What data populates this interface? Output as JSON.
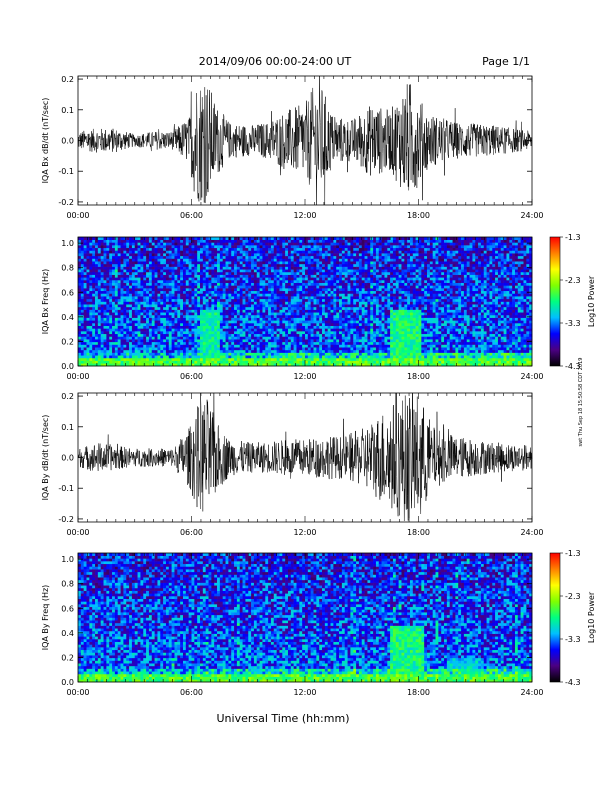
{
  "header": {
    "title": "2014/09/06  00:00-24:00 UT",
    "page": "Page 1/1"
  },
  "footer": {
    "xlabel": "Universal Time (hh:mm)",
    "side_note": "swt Thu Sep 18 15:50:58 CDT 2019"
  },
  "colorbar": {
    "label": "Log10 Power",
    "ticks": [
      "-1.3",
      "-2.3",
      "-3.3",
      "-4.3"
    ],
    "stops": [
      "#000000",
      "#4b0082",
      "#0000ff",
      "#00bfff",
      "#00ff80",
      "#80ff00",
      "#ffff00",
      "#ff8000",
      "#ff0000"
    ]
  },
  "chart_data": [
    {
      "type": "line",
      "ylabel": "IQA Bx dB/dt (nT/sec)",
      "xlim": [
        0,
        24
      ],
      "ylim": [
        -0.21,
        0.21
      ],
      "x_ticks": [
        "00:00",
        "06:00",
        "12:00",
        "18:00",
        "24:00"
      ],
      "y_ticks": [
        "0.2",
        "0.1",
        "0.0",
        "-0.1",
        "-0.2"
      ],
      "y_tick_values": [
        0.2,
        0.1,
        0.0,
        -0.1,
        -0.2
      ],
      "envelope": [
        {
          "x": 0,
          "amp": 0.03
        },
        {
          "x": 1,
          "amp": 0.04
        },
        {
          "x": 2,
          "amp": 0.04
        },
        {
          "x": 3,
          "amp": 0.02
        },
        {
          "x": 4,
          "amp": 0.03
        },
        {
          "x": 5,
          "amp": 0.03
        },
        {
          "x": 5.9,
          "amp": 0.08
        },
        {
          "x": 6.2,
          "amp": 0.2
        },
        {
          "x": 6.8,
          "amp": 0.21
        },
        {
          "x": 7.3,
          "amp": 0.12
        },
        {
          "x": 8,
          "amp": 0.06
        },
        {
          "x": 9,
          "amp": 0.05
        },
        {
          "x": 10,
          "amp": 0.06
        },
        {
          "x": 11,
          "amp": 0.1
        },
        {
          "x": 12,
          "amp": 0.12
        },
        {
          "x": 12.7,
          "amp": 0.21
        },
        {
          "x": 13.5,
          "amp": 0.08
        },
        {
          "x": 14.5,
          "amp": 0.07
        },
        {
          "x": 15.5,
          "amp": 0.12
        },
        {
          "x": 16.5,
          "amp": 0.1
        },
        {
          "x": 17.5,
          "amp": 0.2
        },
        {
          "x": 18.5,
          "amp": 0.09
        },
        {
          "x": 20,
          "amp": 0.06
        },
        {
          "x": 22,
          "amp": 0.05
        },
        {
          "x": 24,
          "amp": 0.03
        }
      ]
    },
    {
      "type": "heatmap",
      "ylabel": "IQA Bx Freq (Hz)",
      "xlim": [
        0,
        24
      ],
      "ylim": [
        0,
        1.05
      ],
      "x_ticks": [
        "00:00",
        "06:00",
        "12:00",
        "18:00",
        "24:00"
      ],
      "y_ticks": [
        "1.0",
        "0.8",
        "0.6",
        "0.4",
        "0.2",
        "0.0"
      ],
      "y_tick_values": [
        1.0,
        0.8,
        0.6,
        0.4,
        0.2,
        0.0
      ],
      "zlim": [
        -4.3,
        -1.3
      ],
      "features": [
        {
          "x0": 6.5,
          "x1": 7.5,
          "f1": 0.45,
          "level": -2.9
        },
        {
          "x0": 16.5,
          "x1": 18.2,
          "f1": 0.45,
          "level": -2.8
        }
      ]
    },
    {
      "type": "line",
      "ylabel": "IQA By dB/dt (nT/sec)",
      "xlim": [
        0,
        24
      ],
      "ylim": [
        -0.21,
        0.21
      ],
      "x_ticks": [
        "00:00",
        "06:00",
        "12:00",
        "18:00",
        "24:00"
      ],
      "y_ticks": [
        "0.2",
        "0.1",
        "0.0",
        "-0.1",
        "-0.2"
      ],
      "y_tick_values": [
        0.2,
        0.1,
        0.0,
        -0.1,
        -0.2
      ],
      "envelope": [
        {
          "x": 0,
          "amp": 0.03
        },
        {
          "x": 1,
          "amp": 0.05
        },
        {
          "x": 2,
          "amp": 0.04
        },
        {
          "x": 3,
          "amp": 0.03
        },
        {
          "x": 4,
          "amp": 0.03
        },
        {
          "x": 5,
          "amp": 0.03
        },
        {
          "x": 5.9,
          "amp": 0.1
        },
        {
          "x": 6.3,
          "amp": 0.17
        },
        {
          "x": 6.8,
          "amp": 0.2
        },
        {
          "x": 7.3,
          "amp": 0.12
        },
        {
          "x": 8,
          "amp": 0.06
        },
        {
          "x": 9,
          "amp": 0.05
        },
        {
          "x": 10,
          "amp": 0.05
        },
        {
          "x": 11,
          "amp": 0.06
        },
        {
          "x": 12,
          "amp": 0.06
        },
        {
          "x": 13,
          "amp": 0.07
        },
        {
          "x": 14,
          "amp": 0.07
        },
        {
          "x": 15.2,
          "amp": 0.1
        },
        {
          "x": 16.2,
          "amp": 0.16
        },
        {
          "x": 17.2,
          "amp": 0.21
        },
        {
          "x": 18,
          "amp": 0.21
        },
        {
          "x": 18.8,
          "amp": 0.1
        },
        {
          "x": 20,
          "amp": 0.07
        },
        {
          "x": 22,
          "amp": 0.05
        },
        {
          "x": 24,
          "amp": 0.04
        }
      ]
    },
    {
      "type": "heatmap",
      "ylabel": "IQA By Freq (Hz)",
      "xlim": [
        0,
        24
      ],
      "ylim": [
        0,
        1.05
      ],
      "x_ticks": [
        "00:00",
        "06:00",
        "12:00",
        "18:00",
        "24:00"
      ],
      "y_ticks": [
        "1.0",
        "0.8",
        "0.6",
        "0.4",
        "0.2",
        "0.0"
      ],
      "y_tick_values": [
        1.0,
        0.8,
        0.6,
        0.4,
        0.2,
        0.0
      ],
      "zlim": [
        -4.3,
        -1.3
      ],
      "features": [
        {
          "x0": 16.5,
          "x1": 18.3,
          "f1": 0.45,
          "level": -2.8
        },
        {
          "x0": 19.5,
          "x1": 21.5,
          "f1": 0.2,
          "level": -3.1
        }
      ]
    }
  ]
}
